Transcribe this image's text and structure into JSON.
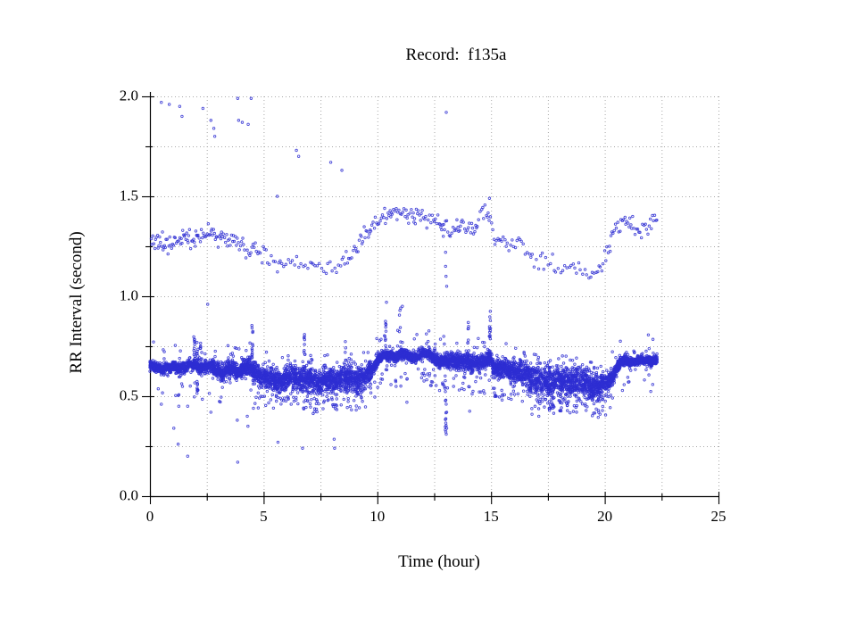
{
  "page": {
    "background": "#ffffff"
  },
  "chart_data": {
    "type": "scatter",
    "title": "Record:  f135a",
    "xlabel": "Time (hour)",
    "ylabel": "RR Interval (second)",
    "xlim": [
      0,
      25
    ],
    "ylim": [
      0.0,
      2.0
    ],
    "x_ticks": [
      0,
      5,
      10,
      15,
      20,
      25
    ],
    "x_minor_step": 2.5,
    "y_ticks": [
      "0.0",
      "0.5",
      "1.0",
      "1.5",
      "2.0"
    ],
    "y_tick_values": [
      0,
      0.5,
      1.0,
      1.5,
      2.0
    ],
    "y_minor_step": 0.25,
    "grid": "dotted",
    "grid_color": "#a8a8a8",
    "axis_color": "#000000",
    "marker_color": "#2e2ed2",
    "marker_shape": "open-circle",
    "t_max": 22.3,
    "seed": 42,
    "main_band": {
      "description": "dense normal-beat RR band",
      "points_per_hour": 330,
      "profile": [
        [
          0,
          0.645
        ],
        [
          0.8,
          0.642
        ],
        [
          1.5,
          0.648
        ],
        [
          2.0,
          0.652
        ],
        [
          2.4,
          0.648
        ],
        [
          2.8,
          0.638
        ],
        [
          3.2,
          0.622
        ],
        [
          3.6,
          0.628
        ],
        [
          4.0,
          0.632
        ],
        [
          4.4,
          0.638
        ],
        [
          4.7,
          0.61
        ],
        [
          5.0,
          0.592
        ],
        [
          5.6,
          0.583
        ],
        [
          6.2,
          0.592
        ],
        [
          6.8,
          0.582
        ],
        [
          7.4,
          0.572
        ],
        [
          8.0,
          0.582
        ],
        [
          8.6,
          0.588
        ],
        [
          9.2,
          0.592
        ],
        [
          9.6,
          0.605
        ],
        [
          9.9,
          0.66
        ],
        [
          10.1,
          0.695
        ],
        [
          10.6,
          0.702
        ],
        [
          11.0,
          0.708
        ],
        [
          11.4,
          0.697
        ],
        [
          11.8,
          0.703
        ],
        [
          12.2,
          0.71
        ],
        [
          12.45,
          0.7
        ],
        [
          12.7,
          0.678
        ],
        [
          13.1,
          0.67
        ],
        [
          13.5,
          0.678
        ],
        [
          13.9,
          0.668
        ],
        [
          14.3,
          0.672
        ],
        [
          14.7,
          0.665
        ],
        [
          14.95,
          0.7
        ],
        [
          15.15,
          0.645
        ],
        [
          15.6,
          0.632
        ],
        [
          16.1,
          0.625
        ],
        [
          16.6,
          0.607
        ],
        [
          17.0,
          0.588
        ],
        [
          17.4,
          0.576
        ],
        [
          17.8,
          0.583
        ],
        [
          18.2,
          0.572
        ],
        [
          18.6,
          0.578
        ],
        [
          19.0,
          0.572
        ],
        [
          19.4,
          0.558
        ],
        [
          19.8,
          0.548
        ],
        [
          20.1,
          0.565
        ],
        [
          20.4,
          0.615
        ],
        [
          20.7,
          0.668
        ],
        [
          21.1,
          0.68
        ],
        [
          21.5,
          0.672
        ],
        [
          21.9,
          0.682
        ],
        [
          22.3,
          0.678
        ]
      ],
      "sd_profile": [
        [
          0,
          0.011
        ],
        [
          1.8,
          0.013
        ],
        [
          3.0,
          0.018
        ],
        [
          4.6,
          0.022
        ],
        [
          5.2,
          0.028
        ],
        [
          9.4,
          0.03
        ],
        [
          9.9,
          0.018
        ],
        [
          10.2,
          0.011
        ],
        [
          12.4,
          0.013
        ],
        [
          12.8,
          0.018
        ],
        [
          13.6,
          0.022
        ],
        [
          14.9,
          0.018
        ],
        [
          15.3,
          0.022
        ],
        [
          16.4,
          0.03
        ],
        [
          17.0,
          0.034
        ],
        [
          19.6,
          0.032
        ],
        [
          20.2,
          0.022
        ],
        [
          20.7,
          0.011
        ],
        [
          22.3,
          0.011
        ]
      ],
      "low_tail_prob": [
        [
          0,
          0.015
        ],
        [
          4.6,
          0.02
        ],
        [
          5.0,
          0.09
        ],
        [
          9.5,
          0.09
        ],
        [
          10.1,
          0.02
        ],
        [
          12.6,
          0.04
        ],
        [
          14.9,
          0.04
        ],
        [
          15.2,
          0.05
        ],
        [
          16.4,
          0.06
        ],
        [
          16.8,
          0.15
        ],
        [
          18.8,
          0.13
        ],
        [
          19.8,
          0.08
        ],
        [
          20.5,
          0.02
        ],
        [
          22.3,
          0.02
        ]
      ],
      "high_tail_prob": 0.02
    },
    "spikes": [
      {
        "t": 1.95,
        "lo": 0.66,
        "hi": 0.8,
        "n": 12
      },
      {
        "t": 2.1,
        "lo": 0.52,
        "hi": 0.83,
        "n": 16
      },
      {
        "t": 2.25,
        "lo": 0.63,
        "hi": 0.78,
        "n": 10
      },
      {
        "t": 4.5,
        "lo": 0.64,
        "hi": 0.87,
        "n": 14
      },
      {
        "t": 6.8,
        "lo": 0.6,
        "hi": 0.82,
        "n": 12
      },
      {
        "t": 8.6,
        "lo": 0.55,
        "hi": 0.78,
        "n": 10
      },
      {
        "t": 10.35,
        "lo": 0.7,
        "hi": 0.9,
        "n": 10
      },
      {
        "t": 11.0,
        "lo": 0.7,
        "hi": 0.95,
        "n": 8
      },
      {
        "t": 13.0,
        "lo": 0.3,
        "hi": 0.62,
        "n": 14
      },
      {
        "t": 14.0,
        "lo": 0.67,
        "hi": 0.88,
        "n": 8
      },
      {
        "t": 14.95,
        "lo": 0.62,
        "hi": 0.93,
        "n": 16
      },
      {
        "t": 21.3,
        "lo": 0.66,
        "hi": 0.75,
        "n": 6
      }
    ],
    "upper_band": {
      "description": "long-interval band, about twice the main band",
      "sd": 0.022,
      "profile": [
        [
          0,
          1.27
        ],
        [
          0.7,
          1.26
        ],
        [
          1.5,
          1.28
        ],
        [
          2.2,
          1.3
        ],
        [
          2.8,
          1.31
        ],
        [
          3.3,
          1.28
        ],
        [
          4.0,
          1.26
        ],
        [
          4.6,
          1.22
        ],
        [
          5.2,
          1.19
        ],
        [
          6.0,
          1.17
        ],
        [
          7.0,
          1.155
        ],
        [
          7.8,
          1.14
        ],
        [
          8.4,
          1.16
        ],
        [
          8.8,
          1.2
        ],
        [
          9.3,
          1.27
        ],
        [
          9.8,
          1.35
        ],
        [
          10.3,
          1.4
        ],
        [
          10.8,
          1.42
        ],
        [
          11.3,
          1.4
        ],
        [
          11.8,
          1.41
        ],
        [
          12.3,
          1.38
        ],
        [
          12.8,
          1.36
        ],
        [
          13.3,
          1.34
        ],
        [
          13.8,
          1.36
        ],
        [
          14.3,
          1.35
        ],
        [
          14.75,
          1.44
        ],
        [
          15.1,
          1.3
        ],
        [
          15.6,
          1.28
        ],
        [
          16.2,
          1.25
        ],
        [
          16.8,
          1.2
        ],
        [
          17.3,
          1.17
        ],
        [
          18.0,
          1.14
        ],
        [
          18.6,
          1.16
        ],
        [
          19.2,
          1.12
        ],
        [
          19.6,
          1.1
        ],
        [
          20.0,
          1.18
        ],
        [
          20.4,
          1.33
        ],
        [
          20.8,
          1.38
        ],
        [
          21.2,
          1.36
        ],
        [
          21.5,
          1.31
        ],
        [
          21.9,
          1.37
        ],
        [
          22.3,
          1.4
        ]
      ],
      "pph_profile": [
        [
          0,
          26
        ],
        [
          2.8,
          26
        ],
        [
          3.5,
          22
        ],
        [
          5,
          15
        ],
        [
          6,
          12
        ],
        [
          8,
          11
        ],
        [
          8.8,
          18
        ],
        [
          9.5,
          22
        ],
        [
          12,
          22
        ],
        [
          14,
          20
        ],
        [
          15,
          18
        ],
        [
          16.5,
          13
        ],
        [
          18,
          11
        ],
        [
          19.5,
          13
        ],
        [
          20.3,
          20
        ],
        [
          22.3,
          20
        ]
      ]
    },
    "mid_points": [
      [
        2.54,
        0.96
      ],
      [
        5.6,
        1.5
      ],
      [
        10.4,
        0.97
      ],
      [
        11.1,
        0.95
      ],
      [
        12.9,
        1.3
      ],
      [
        13.0,
        1.22
      ],
      [
        13.0,
        1.15
      ],
      [
        13.02,
        1.1
      ],
      [
        13.05,
        1.05
      ],
      [
        14.93,
        1.49
      ],
      [
        13.03,
        1.92
      ]
    ],
    "outliers_top": [
      [
        0.5,
        1.97
      ],
      [
        0.85,
        1.96
      ],
      [
        1.31,
        1.95
      ],
      [
        1.41,
        1.9
      ],
      [
        2.33,
        1.94
      ],
      [
        2.68,
        1.88
      ],
      [
        2.81,
        1.84
      ],
      [
        2.85,
        1.8
      ],
      [
        3.86,
        1.99
      ],
      [
        3.9,
        1.88
      ],
      [
        4.06,
        1.87
      ],
      [
        4.32,
        1.86
      ],
      [
        4.45,
        1.99
      ],
      [
        6.44,
        1.73
      ],
      [
        6.54,
        1.7
      ],
      [
        7.95,
        1.67
      ],
      [
        8.44,
        1.63
      ]
    ],
    "outliers_low": [
      [
        0.5,
        0.46
      ],
      [
        1.27,
        0.45
      ],
      [
        1.66,
        0.45
      ],
      [
        1.05,
        0.34
      ],
      [
        1.24,
        0.26
      ],
      [
        1.66,
        0.2
      ],
      [
        2.68,
        0.42
      ],
      [
        3.84,
        0.38
      ],
      [
        3.86,
        0.17
      ],
      [
        4.28,
        0.4
      ],
      [
        4.31,
        0.35
      ],
      [
        4.55,
        0.44
      ],
      [
        5.63,
        0.27
      ],
      [
        6.71,
        0.24
      ],
      [
        8.1,
        0.285
      ],
      [
        8.12,
        0.24
      ],
      [
        11.3,
        0.47
      ],
      [
        13.05,
        0.42
      ],
      [
        14.06,
        0.425
      ],
      [
        13.05,
        0.34
      ],
      [
        13.03,
        0.31
      ],
      [
        16.8,
        0.41
      ],
      [
        17.1,
        0.4
      ]
    ]
  }
}
